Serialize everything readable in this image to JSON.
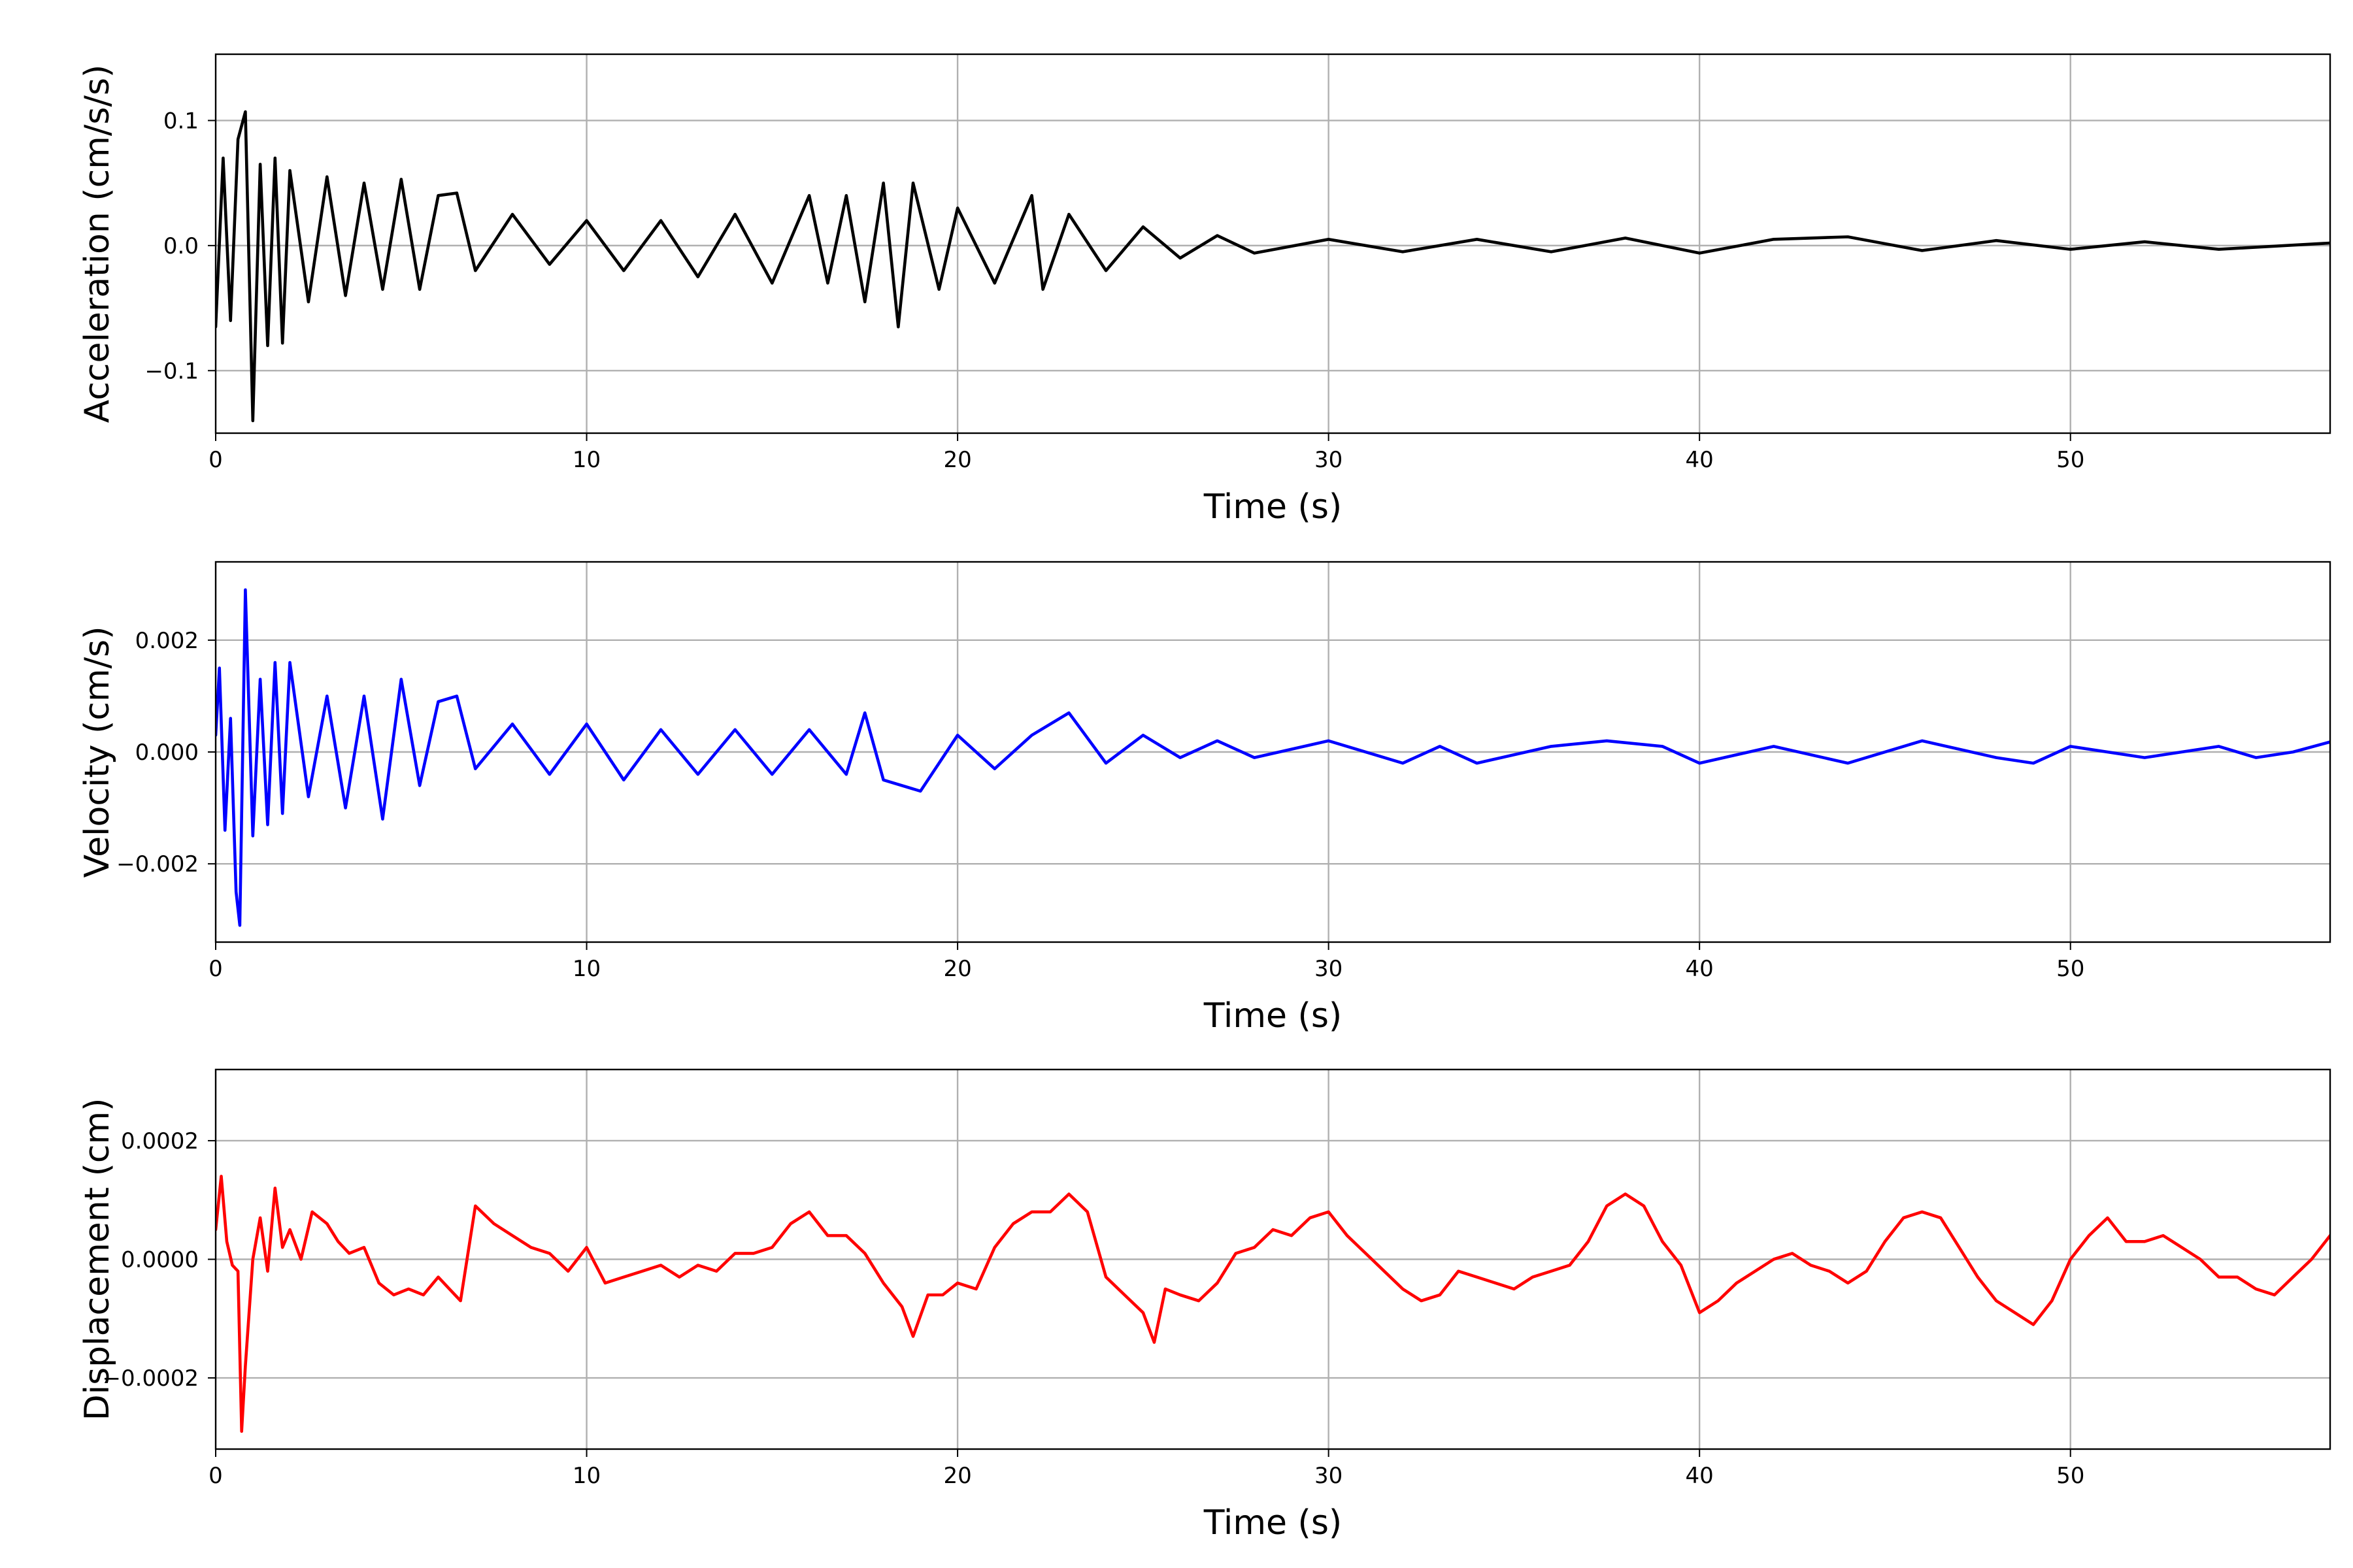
{
  "chart_data": [
    {
      "type": "line",
      "xlabel": "Time (s)",
      "ylabel": "Acceleration (cm/s/s)",
      "xlim": [
        0,
        57
      ],
      "ylim": [
        -0.15,
        0.153
      ],
      "xticks": [
        0,
        10,
        20,
        30,
        40,
        50
      ],
      "xtick_labels": [
        "0",
        "10",
        "20",
        "30",
        "40",
        "50"
      ],
      "yticks": [
        -0.1,
        0.0,
        0.1
      ],
      "ytick_labels": [
        "−0.1",
        "0.0",
        "0.1"
      ],
      "grid": true,
      "color": "#000000",
      "series": [
        {
          "x": [
            0,
            0.2,
            0.4,
            0.6,
            0.8,
            1.0,
            1.2,
            1.4,
            1.6,
            1.8,
            2.0,
            2.5,
            3.0,
            3.5,
            4.0,
            4.5,
            5.0,
            5.5,
            6.0,
            6.5,
            7.0,
            8.0,
            9.0,
            10.0,
            11.0,
            12.0,
            13.0,
            14.0,
            15.0,
            16.0,
            16.5,
            17.0,
            17.5,
            18.0,
            18.4,
            18.8,
            19.5,
            20.0,
            21.0,
            22.0,
            22.3,
            23.0,
            24.0,
            25.0,
            26.0,
            27.0,
            28.0,
            30.0,
            32.0,
            34.0,
            36.0,
            38.0,
            40.0,
            42.0,
            44.0,
            46.0,
            48.0,
            50.0,
            52.0,
            54.0,
            57.0
          ],
          "y": [
            -0.065,
            0.07,
            -0.06,
            0.085,
            0.107,
            -0.14,
            0.065,
            -0.08,
            0.07,
            -0.078,
            0.06,
            -0.045,
            0.055,
            -0.04,
            0.05,
            -0.035,
            0.053,
            -0.035,
            0.04,
            0.042,
            -0.02,
            0.025,
            -0.015,
            0.02,
            -0.02,
            0.02,
            -0.025,
            0.025,
            -0.03,
            0.04,
            -0.03,
            0.04,
            -0.045,
            0.05,
            -0.065,
            0.05,
            -0.035,
            0.03,
            -0.03,
            0.04,
            -0.035,
            0.025,
            -0.02,
            0.015,
            -0.01,
            0.008,
            -0.006,
            0.005,
            -0.005,
            0.005,
            -0.005,
            0.006,
            -0.006,
            0.005,
            0.007,
            -0.004,
            0.004,
            -0.003,
            0.003,
            -0.003,
            0.002
          ]
        }
      ]
    },
    {
      "type": "line",
      "xlabel": "Time (s)",
      "ylabel": "Velocity (cm/s)",
      "xlim": [
        0,
        57
      ],
      "ylim": [
        -0.0034,
        0.0034
      ],
      "xticks": [
        0,
        10,
        20,
        30,
        40,
        50
      ],
      "xtick_labels": [
        "0",
        "10",
        "20",
        "30",
        "40",
        "50"
      ],
      "yticks": [
        -0.002,
        0.0,
        0.002
      ],
      "ytick_labels": [
        "−0.002",
        "0.000",
        "0.002"
      ],
      "grid": true,
      "color": "#0000ff",
      "series": [
        {
          "x": [
            0,
            0.1,
            0.25,
            0.4,
            0.55,
            0.65,
            0.8,
            1.0,
            1.2,
            1.4,
            1.6,
            1.8,
            2.0,
            2.5,
            3.0,
            3.5,
            4.0,
            4.5,
            5.0,
            5.5,
            6.0,
            6.5,
            7.0,
            8.0,
            9.0,
            10.0,
            11.0,
            12.0,
            13.0,
            14.0,
            15.0,
            16.0,
            17.0,
            17.5,
            18.0,
            19.0,
            20.0,
            21.0,
            22.0,
            23.0,
            24.0,
            25.0,
            26.0,
            27.0,
            28.0,
            30.0,
            32.0,
            33.0,
            34.0,
            36.0,
            37.5,
            39.0,
            40.0,
            42.0,
            44.0,
            46.0,
            48.0,
            49.0,
            50.0,
            52.0,
            54.0,
            55.0,
            56.0,
            57.0
          ],
          "y": [
            0.0003,
            0.0015,
            -0.0014,
            0.0006,
            -0.0025,
            -0.0031,
            0.0029,
            -0.0015,
            0.0013,
            -0.0013,
            0.0016,
            -0.0011,
            0.0016,
            -0.0008,
            0.001,
            -0.001,
            0.001,
            -0.0012,
            0.0013,
            -0.0006,
            0.0009,
            0.001,
            -0.0003,
            0.0005,
            -0.0004,
            0.0005,
            -0.0005,
            0.0004,
            -0.0004,
            0.0004,
            -0.0004,
            0.0004,
            -0.0004,
            0.0007,
            -0.0005,
            -0.0007,
            0.0003,
            -0.0003,
            0.0003,
            0.0007,
            -0.0002,
            0.0003,
            -0.0001,
            0.0002,
            -0.0001,
            0.0002,
            -0.0002,
            0.0001,
            -0.0002,
            0.0001,
            0.0002,
            0.0001,
            -0.0002,
            0.0001,
            -0.0002,
            0.0002,
            -0.0001,
            -0.0002,
            0.0001,
            -0.0001,
            0.0001,
            -0.0001,
            0.0,
            0.00018
          ]
        }
      ]
    },
    {
      "type": "line",
      "xlabel": "Time (s)",
      "ylabel": "Displacement (cm)",
      "xlim": [
        0,
        57
      ],
      "ylim": [
        -0.00032,
        0.00032
      ],
      "xticks": [
        0,
        10,
        20,
        30,
        40,
        50
      ],
      "xtick_labels": [
        "0",
        "10",
        "20",
        "30",
        "40",
        "50"
      ],
      "yticks": [
        -0.0002,
        0.0,
        0.0002
      ],
      "ytick_labels": [
        "−0.0002",
        "0.0000",
        "0.0002"
      ],
      "grid": true,
      "color": "#ff0000",
      "series": [
        {
          "x": [
            0,
            0.15,
            0.3,
            0.45,
            0.6,
            0.7,
            0.8,
            1.0,
            1.2,
            1.4,
            1.6,
            1.8,
            2.0,
            2.3,
            2.6,
            3.0,
            3.3,
            3.6,
            4.0,
            4.4,
            4.8,
            5.2,
            5.6,
            6.0,
            6.3,
            6.6,
            7.0,
            7.5,
            8.0,
            8.5,
            9.0,
            9.5,
            10.0,
            10.5,
            11.0,
            11.5,
            12.0,
            12.5,
            13.0,
            13.5,
            14.0,
            14.5,
            15.0,
            15.5,
            16.0,
            16.5,
            17.0,
            17.5,
            18.0,
            18.5,
            18.8,
            19.2,
            19.6,
            20.0,
            20.5,
            21.0,
            21.5,
            22.0,
            22.5,
            23.0,
            23.5,
            24.0,
            24.5,
            25.0,
            25.3,
            25.6,
            26.0,
            26.5,
            27.0,
            27.5,
            28.0,
            28.5,
            29.0,
            29.5,
            30.0,
            30.5,
            31.0,
            31.5,
            32.0,
            32.5,
            33.0,
            33.5,
            34.0,
            34.5,
            35.0,
            35.5,
            36.0,
            36.5,
            37.0,
            37.5,
            38.0,
            38.5,
            39.0,
            39.5,
            40.0,
            40.5,
            41.0,
            41.5,
            42.0,
            42.5,
            43.0,
            43.5,
            44.0,
            44.5,
            45.0,
            45.5,
            46.0,
            46.5,
            47.0,
            47.5,
            48.0,
            48.5,
            49.0,
            49.5,
            50.0,
            50.5,
            51.0,
            51.5,
            52.0,
            52.5,
            53.0,
            53.5,
            54.0,
            54.5,
            55.0,
            55.5,
            56.0,
            56.5,
            57.0
          ],
          "y": [
            5e-05,
            0.00014,
            3e-05,
            -1e-05,
            -2e-05,
            -0.00029,
            -0.00018,
            0.0,
            7e-05,
            -2e-05,
            0.00012,
            2e-05,
            5e-05,
            0.0,
            8e-05,
            6e-05,
            3e-05,
            1e-05,
            2e-05,
            -4e-05,
            -6e-05,
            -5e-05,
            -6e-05,
            -3e-05,
            -5e-05,
            -7e-05,
            9e-05,
            6e-05,
            4e-05,
            2e-05,
            1e-05,
            -2e-05,
            2e-05,
            -4e-05,
            -3e-05,
            -2e-05,
            -1e-05,
            -3e-05,
            -1e-05,
            -2e-05,
            1e-05,
            1e-05,
            2e-05,
            6e-05,
            8e-05,
            4e-05,
            4e-05,
            1e-05,
            -4e-05,
            -8e-05,
            -0.00013,
            -6e-05,
            -6e-05,
            -4e-05,
            -5e-05,
            2e-05,
            6e-05,
            8e-05,
            8e-05,
            0.00011,
            8e-05,
            -3e-05,
            -6e-05,
            -9e-05,
            -0.00014,
            -5e-05,
            -6e-05,
            -7e-05,
            -4e-05,
            1e-05,
            2e-05,
            5e-05,
            4e-05,
            7e-05,
            8e-05,
            4e-05,
            1e-05,
            -2e-05,
            -5e-05,
            -7e-05,
            -6e-05,
            -2e-05,
            -3e-05,
            -4e-05,
            -5e-05,
            -3e-05,
            -2e-05,
            -1e-05,
            3e-05,
            9e-05,
            0.00011,
            9e-05,
            3e-05,
            -1e-05,
            -9e-05,
            -7e-05,
            -4e-05,
            -2e-05,
            0.0,
            1e-05,
            -1e-05,
            -2e-05,
            -4e-05,
            -2e-05,
            3e-05,
            7e-05,
            8e-05,
            7e-05,
            2e-05,
            -3e-05,
            -7e-05,
            -9e-05,
            -0.00011,
            -7e-05,
            0.0,
            4e-05,
            7e-05,
            3e-05,
            3e-05,
            4e-05,
            2e-05,
            0.0,
            -3e-05,
            -3e-05,
            -5e-05,
            -6e-05,
            -3e-05,
            0.0,
            4e-05
          ]
        }
      ]
    }
  ]
}
